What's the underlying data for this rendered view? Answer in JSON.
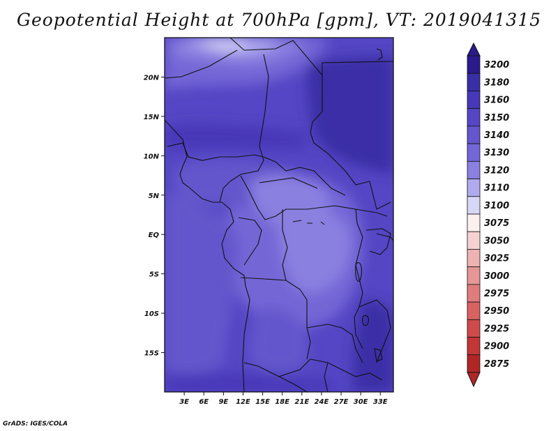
{
  "title": "Geopotential Height at 700hPa [gpm], VT: 2019041315",
  "credit": "GrADS: IGES/COLA",
  "map": {
    "lon_range": [
      0,
      35
    ],
    "lat_range": [
      -20,
      25
    ],
    "lon_ticks": [
      "3E",
      "6E",
      "9E",
      "12E",
      "15E",
      "18E",
      "21E",
      "24E",
      "27E",
      "30E",
      "33E"
    ],
    "lon_tick_values": [
      3,
      6,
      9,
      12,
      15,
      18,
      21,
      24,
      27,
      30,
      33
    ],
    "lat_ticks": [
      "20N",
      "15N",
      "10N",
      "5N",
      "EQ",
      "5S",
      "10S",
      "15S"
    ],
    "lat_tick_values": [
      20,
      15,
      10,
      5,
      0,
      -5,
      -10,
      -15
    ]
  },
  "colorbar": {
    "levels": [
      {
        "label": "3200",
        "color": "#2a1a8c"
      },
      {
        "label": "3180",
        "color": "#3a2ea6"
      },
      {
        "label": "3160",
        "color": "#4638b8"
      },
      {
        "label": "3150",
        "color": "#5446c4"
      },
      {
        "label": "3140",
        "color": "#6456cc"
      },
      {
        "label": "3130",
        "color": "#7466d6"
      },
      {
        "label": "3120",
        "color": "#8a80e0"
      },
      {
        "label": "3110",
        "color": "#b0aaee"
      },
      {
        "label": "3100",
        "color": "#d8d6f6"
      },
      {
        "label": "3075",
        "color": "#fbefef"
      },
      {
        "label": "3050",
        "color": "#f5d2d2"
      },
      {
        "label": "3025",
        "color": "#eeb2b2"
      },
      {
        "label": "3000",
        "color": "#e69696"
      },
      {
        "label": "2975",
        "color": "#df7c7c"
      },
      {
        "label": "2950",
        "color": "#d86262"
      },
      {
        "label": "2925",
        "color": "#cf4a4a"
      },
      {
        "label": "2900",
        "color": "#c23636"
      },
      {
        "label": "2875",
        "color": "#b02626"
      }
    ],
    "top_arrow_color": "#2a1a8c",
    "bottom_arrow_color": "#b02626"
  }
}
